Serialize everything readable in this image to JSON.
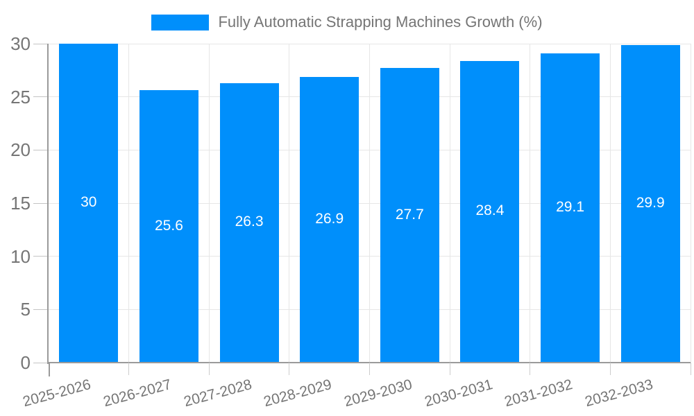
{
  "chart_data": {
    "type": "bar",
    "title": "Fully Automatic Strapping Machines Growth (%)",
    "categories": [
      "2025-2026",
      "2026-2027",
      "2027-2028",
      "2028-2029",
      "2029-2030",
      "2030-2031",
      "2031-2032",
      "2032-2033"
    ],
    "values": [
      30,
      25.6,
      26.3,
      26.9,
      27.7,
      28.4,
      29.1,
      29.9
    ],
    "value_labels": [
      "30",
      "25.6",
      "26.3",
      "26.9",
      "27.7",
      "28.4",
      "29.1",
      "29.9"
    ],
    "xlabel": "",
    "ylabel": "",
    "ylim": [
      0,
      30
    ],
    "yticks": [
      0,
      5,
      10,
      15,
      20,
      25,
      30
    ],
    "grid": true,
    "legend_position": "top",
    "x_label_rotation_deg": -15
  },
  "colors": {
    "bar": "#008FFB",
    "axis": "#9a9a9a",
    "gridline": "#e6e6e6",
    "tick": "#cccccc",
    "axis_label": "#757575",
    "legend_text": "#757575",
    "data_label": "#ffffff",
    "background": "#ffffff"
  }
}
